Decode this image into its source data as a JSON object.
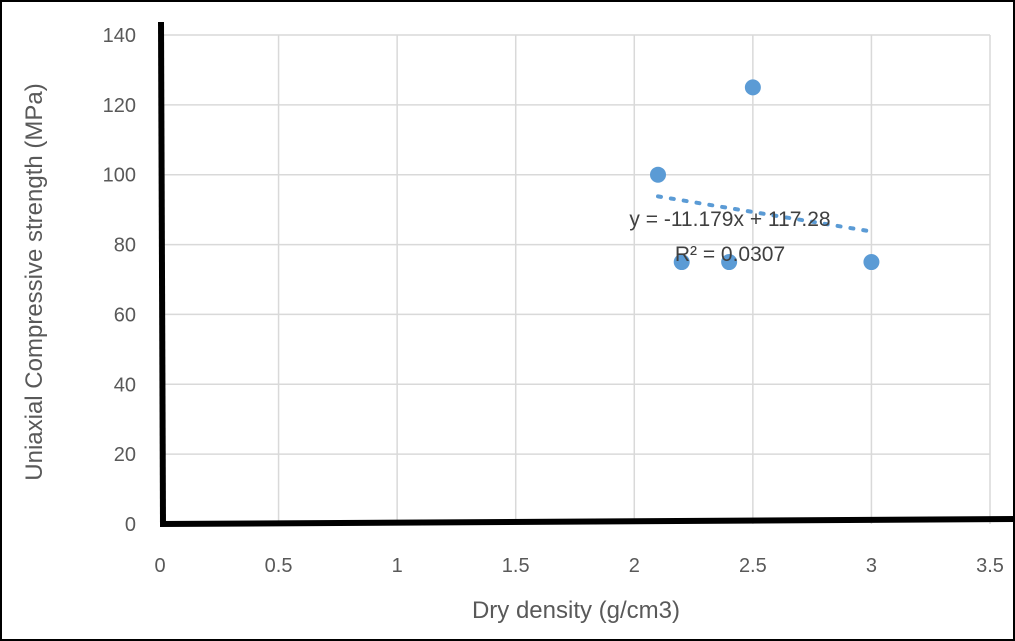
{
  "chart_data": {
    "type": "scatter",
    "title": "",
    "xlabel": "Dry density (g/cm3)",
    "ylabel": "Uniaxial Compressive strength (MPa)",
    "xlim": [
      0,
      3.5
    ],
    "ylim": [
      0,
      140
    ],
    "x_ticks": [
      0,
      0.5,
      1,
      1.5,
      2,
      2.5,
      3,
      3.5
    ],
    "x_tick_labels": [
      "0",
      "0.5",
      "1",
      "1.5",
      "2",
      "2.5",
      "3",
      "3.5"
    ],
    "y_ticks": [
      0,
      20,
      40,
      60,
      80,
      100,
      120,
      140
    ],
    "y_tick_labels": [
      "0",
      "20",
      "40",
      "60",
      "80",
      "100",
      "120",
      "140"
    ],
    "grid": true,
    "legend": "none",
    "series": [
      {
        "x": [
          2.1,
          2.2,
          2.4,
          2.5,
          3.0
        ],
        "y": [
          100,
          75,
          75,
          125,
          75
        ],
        "color": "#5b9bd5"
      }
    ],
    "trendline": {
      "type": "linear",
      "slope": -11.179,
      "intercept": 117.28,
      "x_range": [
        2.1,
        3.0
      ],
      "style": "dotted",
      "color": "#5b9bd5",
      "equation": "y = -11.179x + 117.28",
      "r_squared": "R² = 0.0307"
    }
  }
}
